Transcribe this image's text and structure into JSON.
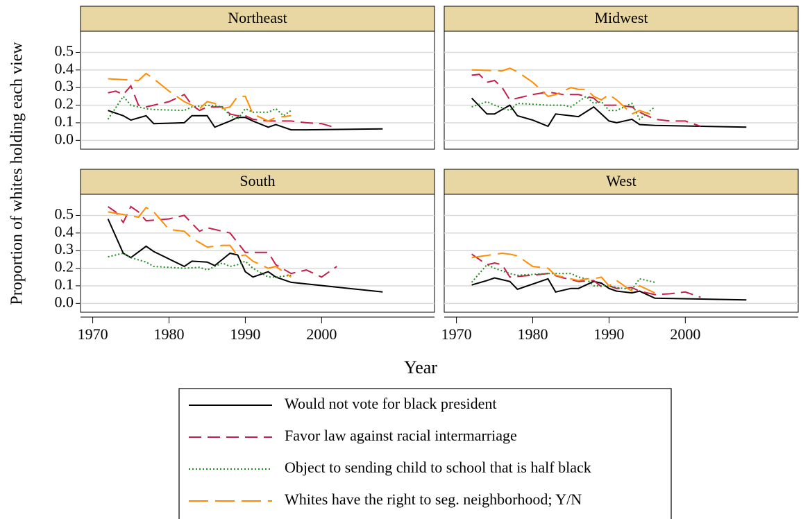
{
  "chart_data": {
    "type": "line",
    "ylabel": "Proportion of whites holding each view",
    "xlabel": "Year",
    "xlim": [
      1968.4,
      2014.8
    ],
    "xticks": [
      1970,
      1980,
      1990,
      2000
    ],
    "ylim": [
      -0.05,
      0.62
    ],
    "yticks": [
      {
        "value": 0,
        "label": "0.0"
      },
      {
        "value": 0.1,
        "label": "0.1"
      },
      {
        "value": 0.2,
        "label": "0.2"
      },
      {
        "value": 0.3,
        "label": "0.3"
      },
      {
        "value": 0.4,
        "label": "0.4"
      },
      {
        "value": 0.5,
        "label": "0.5"
      }
    ],
    "grid": true,
    "series": [
      {
        "name": "Would not vote for black president",
        "color": "#000000",
        "dash": "none"
      },
      {
        "name": "Favor law against racial intermarriage",
        "color": "#c41e4a",
        "dash": "18,9"
      },
      {
        "name": "Object to sending child to school that is half black",
        "color": "#1e8c1e",
        "dash": "2,3"
      },
      {
        "name": "Whites have the right to seg. neighborhood; Y/N",
        "color": "#ff8c00",
        "dash": "28,10"
      }
    ],
    "panels": [
      {
        "title": "Northeast",
        "lines": [
          {
            "x": [
              1972,
              1974,
              1975,
              1977,
              1978,
              1982,
              1983,
              1985,
              1986,
              1988,
              1989,
              1990,
              1991,
              1993,
              1994,
              1996,
              1998,
              2008
            ],
            "values": [
              0.17,
              0.14,
              0.115,
              0.14,
              0.095,
              0.1,
              0.14,
              0.14,
              0.075,
              0.11,
              0.13,
              0.13,
              0.11,
              0.075,
              0.09,
              0.06,
              0.06,
              0.065
            ]
          },
          {
            "x": [
              1972,
              1973,
              1974,
              1975,
              1976,
              1977,
              1980,
              1982,
              1983,
              1984,
              1985,
              1987,
              1988,
              1989,
              1990,
              1991,
              1993,
              1994,
              1996,
              1998,
              2000,
              2002
            ],
            "values": [
              0.27,
              0.28,
              0.26,
              0.31,
              0.2,
              0.19,
              0.22,
              0.26,
              0.2,
              0.17,
              0.19,
              0.19,
              0.15,
              0.14,
              0.14,
              0.12,
              0.11,
              0.11,
              0.11,
              0.1,
              0.095,
              0.07
            ]
          },
          {
            "x": [
              1972,
              1974,
              1975,
              1977,
              1978,
              1982,
              1983,
              1985,
              1987,
              1988,
              1989,
              1990,
              1991,
              1993,
              1994,
              1995,
              1996
            ],
            "values": [
              0.12,
              0.25,
              0.2,
              0.18,
              0.175,
              0.17,
              0.19,
              0.2,
              0.19,
              0.14,
              0.12,
              0.18,
              0.16,
              0.16,
              0.18,
              0.14,
              0.17
            ]
          },
          {
            "x": [
              1972,
              1976,
              1977,
              1978,
              1980,
              1982,
              1983,
              1984,
              1985,
              1986,
              1987,
              1988,
              1989,
              1990,
              1991,
              1993,
              1994,
              1996
            ],
            "values": [
              0.35,
              0.34,
              0.38,
              0.35,
              0.28,
              0.22,
              0.2,
              0.18,
              0.22,
              0.21,
              0.18,
              0.19,
              0.25,
              0.25,
              0.15,
              0.11,
              0.13,
              0.14
            ]
          }
        ]
      },
      {
        "title": "Midwest",
        "lines": [
          {
            "x": [
              1972,
              1974,
              1975,
              1977,
              1978,
              1980,
              1982,
              1983,
              1986,
              1988,
              1990,
              1991,
              1993,
              1994,
              1996,
              2008
            ],
            "values": [
              0.24,
              0.15,
              0.15,
              0.2,
              0.14,
              0.115,
              0.08,
              0.15,
              0.135,
              0.19,
              0.11,
              0.1,
              0.12,
              0.09,
              0.085,
              0.075
            ]
          },
          {
            "x": [
              1972,
              1973,
              1974,
              1975,
              1976,
              1977,
              1980,
              1982,
              1984,
              1986,
              1988,
              1989,
              1990,
              1991,
              1993,
              1994,
              1996,
              1998,
              2000,
              2002
            ],
            "values": [
              0.37,
              0.375,
              0.33,
              0.34,
              0.3,
              0.23,
              0.26,
              0.275,
              0.26,
              0.26,
              0.24,
              0.2,
              0.2,
              0.2,
              0.19,
              0.16,
              0.12,
              0.11,
              0.11,
              0.08
            ]
          },
          {
            "x": [
              1972,
              1974,
              1975,
              1977,
              1978,
              1982,
              1984,
              1985,
              1987,
              1988,
              1989,
              1990,
              1991,
              1993,
              1994,
              1996
            ],
            "values": [
              0.19,
              0.22,
              0.2,
              0.17,
              0.21,
              0.2,
              0.2,
              0.19,
              0.25,
              0.21,
              0.22,
              0.17,
              0.17,
              0.21,
              0.12,
              0.19
            ]
          },
          {
            "x": [
              1972,
              1976,
              1977,
              1978,
              1980,
              1982,
              1983,
              1985,
              1986,
              1987,
              1988,
              1989,
              1990,
              1991,
              1993,
              1994,
              1996
            ],
            "values": [
              0.4,
              0.395,
              0.41,
              0.39,
              0.33,
              0.25,
              0.26,
              0.3,
              0.29,
              0.29,
              0.25,
              0.23,
              0.26,
              0.23,
              0.15,
              0.17,
              0.14
            ]
          }
        ]
      },
      {
        "title": "South",
        "lines": [
          {
            "x": [
              1972,
              1974,
              1975,
              1977,
              1978,
              1982,
              1983,
              1985,
              1986,
              1988,
              1989,
              1990,
              1991,
              1993,
              1994,
              1996,
              2008
            ],
            "values": [
              0.48,
              0.285,
              0.26,
              0.325,
              0.295,
              0.21,
              0.24,
              0.235,
              0.215,
              0.285,
              0.275,
              0.18,
              0.15,
              0.18,
              0.15,
              0.12,
              0.065
            ]
          },
          {
            "x": [
              1972,
              1973,
              1974,
              1975,
              1976,
              1977,
              1980,
              1982,
              1984,
              1985,
              1987,
              1988,
              1990,
              1991,
              1993,
              1994,
              1996,
              1998,
              2000,
              2002
            ],
            "values": [
              0.55,
              0.52,
              0.46,
              0.55,
              0.52,
              0.47,
              0.48,
              0.5,
              0.41,
              0.43,
              0.41,
              0.4,
              0.29,
              0.29,
              0.29,
              0.22,
              0.17,
              0.19,
              0.15,
              0.21
            ]
          },
          {
            "x": [
              1972,
              1974,
              1975,
              1977,
              1978,
              1982,
              1984,
              1985,
              1987,
              1988,
              1989,
              1990,
              1991,
              1993,
              1994,
              1996
            ],
            "values": [
              0.265,
              0.285,
              0.26,
              0.235,
              0.21,
              0.2,
              0.205,
              0.19,
              0.23,
              0.21,
              0.22,
              0.24,
              0.2,
              0.15,
              0.15,
              0.16
            ]
          },
          {
            "x": [
              1972,
              1976,
              1977,
              1978,
              1980,
              1982,
              1983,
              1985,
              1987,
              1988,
              1989,
              1990,
              1991,
              1993,
              1994,
              1996
            ],
            "values": [
              0.52,
              0.49,
              0.545,
              0.52,
              0.42,
              0.41,
              0.37,
              0.32,
              0.33,
              0.33,
              0.27,
              0.275,
              0.24,
              0.2,
              0.21,
              0.15
            ]
          }
        ]
      },
      {
        "title": "West",
        "lines": [
          {
            "x": [
              1972,
              1974,
              1975,
              1977,
              1978,
              1982,
              1983,
              1985,
              1986,
              1988,
              1989,
              1990,
              1991,
              1993,
              1994,
              1996,
              2008
            ],
            "values": [
              0.105,
              0.13,
              0.145,
              0.125,
              0.08,
              0.14,
              0.065,
              0.085,
              0.085,
              0.125,
              0.115,
              0.085,
              0.07,
              0.06,
              0.07,
              0.03,
              0.02
            ]
          },
          {
            "x": [
              1972,
              1973,
              1974,
              1975,
              1976,
              1977,
              1980,
              1982,
              1984,
              1986,
              1988,
              1989,
              1990,
              1991,
              1993,
              1994,
              1996,
              1998,
              2000,
              2002
            ],
            "values": [
              0.28,
              0.25,
              0.22,
              0.23,
              0.22,
              0.15,
              0.16,
              0.17,
              0.145,
              0.125,
              0.13,
              0.095,
              0.1,
              0.085,
              0.09,
              0.07,
              0.05,
              0.055,
              0.065,
              0.035
            ]
          },
          {
            "x": [
              1972,
              1974,
              1975,
              1977,
              1978,
              1982,
              1983,
              1985,
              1986,
              1987,
              1988,
              1989,
              1990,
              1991,
              1993,
              1994,
              1996
            ],
            "values": [
              0.12,
              0.22,
              0.2,
              0.17,
              0.16,
              0.17,
              0.17,
              0.17,
              0.15,
              0.14,
              0.1,
              0.1,
              0.1,
              0.09,
              0.08,
              0.14,
              0.12
            ]
          },
          {
            "x": [
              1972,
              1976,
              1977,
              1978,
              1980,
              1982,
              1983,
              1985,
              1986,
              1987,
              1988,
              1989,
              1990,
              1991,
              1993,
              1994,
              1996
            ],
            "values": [
              0.26,
              0.285,
              0.28,
              0.27,
              0.21,
              0.2,
              0.16,
              0.14,
              0.13,
              0.14,
              0.14,
              0.15,
              0.1,
              0.13,
              0.07,
              0.1,
              0.06
            ]
          }
        ]
      }
    ]
  }
}
